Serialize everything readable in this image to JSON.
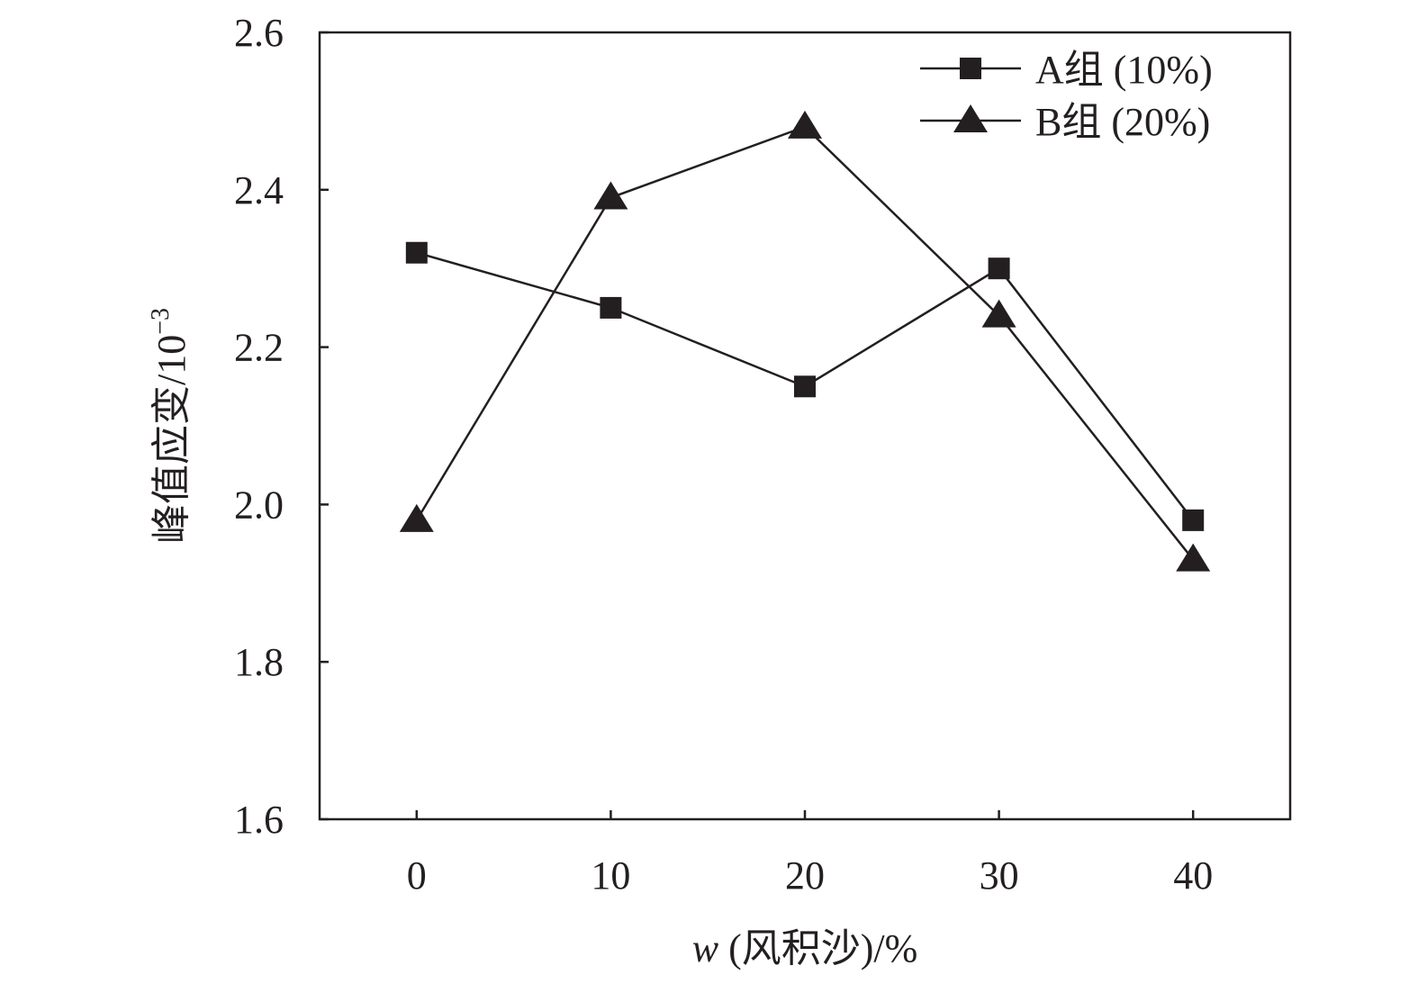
{
  "chart_data": {
    "type": "line",
    "title": "",
    "xlabel_italic": "w",
    "xlabel": " (风积沙)/%",
    "ylabel": "峰值应变/10",
    "ylabel_sup": "−3",
    "x": [
      0,
      10,
      20,
      30,
      40
    ],
    "xticks": [
      "0",
      "10",
      "20",
      "30",
      "40"
    ],
    "xlim": [
      -5,
      45
    ],
    "yticks": [
      "1.6",
      "1.8",
      "2.0",
      "2.2",
      "2.4",
      "2.6"
    ],
    "ylim": [
      1.6,
      2.6
    ],
    "grid": false,
    "legend_position": "top-right",
    "series": [
      {
        "name": "A组 (10%)",
        "marker": "square",
        "values": [
          2.32,
          2.25,
          2.15,
          2.3,
          1.98
        ]
      },
      {
        "name": "B组 (20%)",
        "marker": "triangle",
        "values": [
          1.98,
          2.39,
          2.48,
          2.24,
          1.93
        ]
      }
    ],
    "color": "#231f20"
  }
}
